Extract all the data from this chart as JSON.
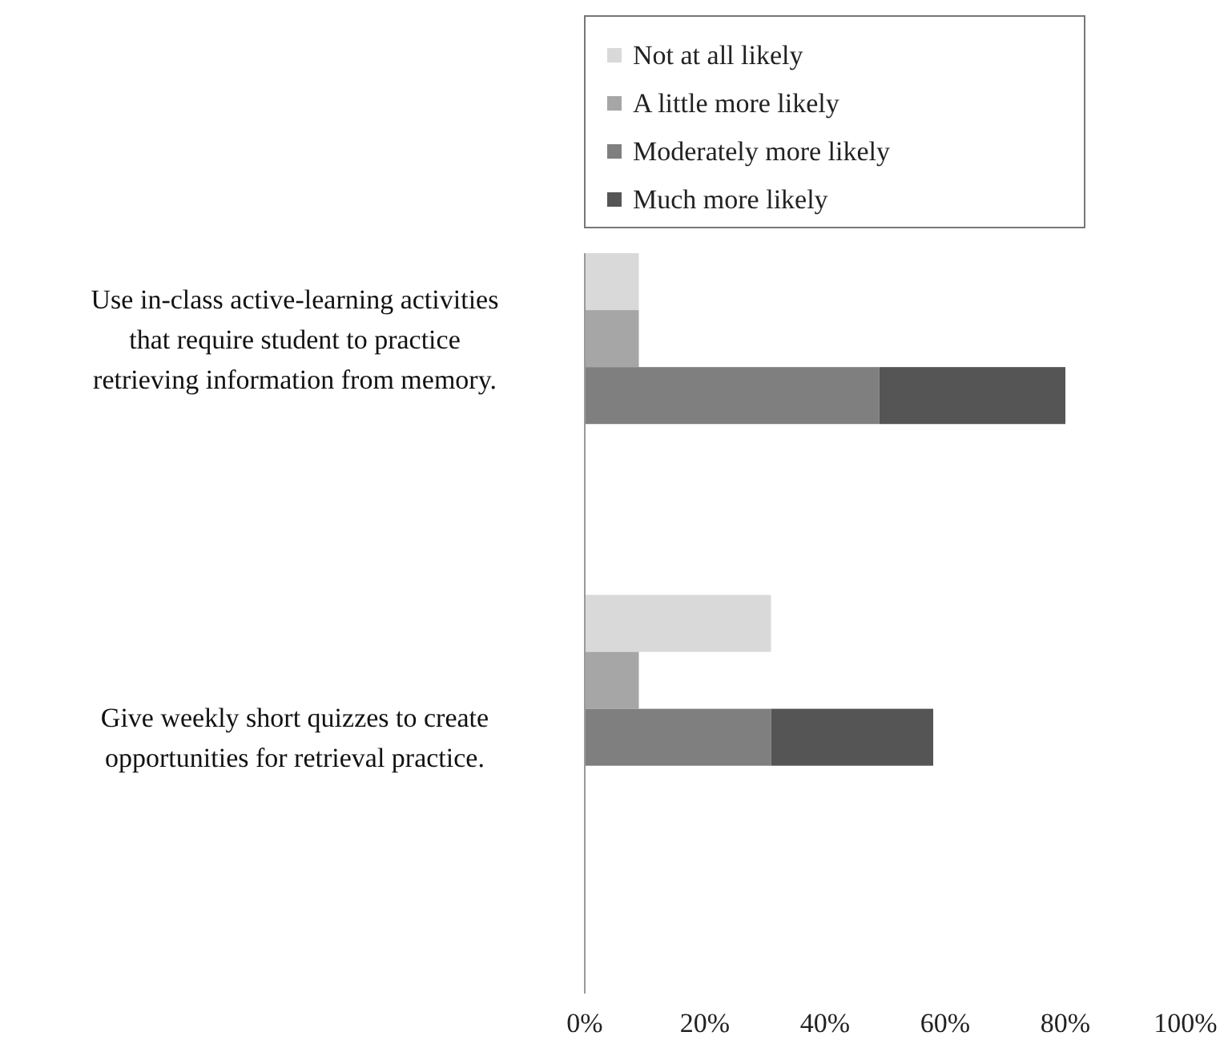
{
  "chart_data": {
    "type": "bar",
    "orientation": "horizontal",
    "stacked": true,
    "categories": [
      null,
      "Use in-class active-learning activities that require student to practice retrieving information from memory.",
      null,
      null,
      null,
      null,
      null,
      null,
      "Give weekly short quizzes to create opportunities for retrieval practice.",
      null,
      null,
      null,
      null
    ],
    "series": [
      {
        "name": "Not at all likely",
        "color": "#d9d9d9",
        "values": [
          9,
          null,
          null,
          null,
          null,
          null,
          31,
          null,
          null,
          null,
          null,
          null,
          null
        ]
      },
      {
        "name": "A little more likely",
        "color": "#a6a6a6",
        "values": [
          null,
          9,
          null,
          null,
          null,
          null,
          null,
          9,
          null,
          null,
          null,
          null,
          null
        ]
      },
      {
        "name": "Moderately more likely",
        "color": "#7f7f7f",
        "values": [
          null,
          null,
          49,
          null,
          null,
          null,
          null,
          null,
          31,
          null,
          null,
          null,
          null
        ]
      },
      {
        "name": "Much more likely",
        "color": "#555555",
        "values": [
          null,
          null,
          31,
          null,
          null,
          null,
          null,
          null,
          27,
          null,
          null,
          null,
          null
        ]
      }
    ],
    "xlim": [
      0,
      100
    ],
    "xticks": [
      {
        "value": 0,
        "label": "0%"
      },
      {
        "value": 20,
        "label": "20%"
      },
      {
        "value": 40,
        "label": "40%"
      },
      {
        "value": 60,
        "label": "60%"
      },
      {
        "value": 80,
        "label": "80%"
      },
      {
        "value": 100,
        "label": "100%"
      }
    ],
    "grid": false,
    "legend": "top"
  }
}
